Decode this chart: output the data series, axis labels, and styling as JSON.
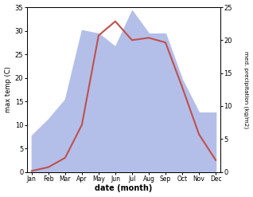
{
  "months": [
    "Jan",
    "Feb",
    "Mar",
    "Apr",
    "May",
    "Jun",
    "Jul",
    "Aug",
    "Sep",
    "Oct",
    "Nov",
    "Dec"
  ],
  "temp": [
    0.2,
    1.0,
    3.0,
    10.0,
    29.0,
    32.0,
    28.0,
    28.5,
    27.5,
    18.0,
    8.0,
    2.5
  ],
  "precip": [
    5.5,
    8.0,
    11.0,
    21.5,
    21.0,
    19.0,
    24.5,
    21.0,
    21.0,
    14.0,
    9.0,
    9.0
  ],
  "temp_color": "#c0504d",
  "precip_fill_color": "#b3bfe8",
  "ylim_temp": [
    0,
    35
  ],
  "ylim_precip": [
    0,
    25
  ],
  "xlabel": "date (month)",
  "ylabel_left": "max temp (C)",
  "ylabel_right": "med. precipitation (kg/m2)",
  "bg_color": "#ffffff",
  "yticks_temp": [
    0,
    5,
    10,
    15,
    20,
    25,
    30,
    35
  ],
  "yticks_precip": [
    0,
    5,
    10,
    15,
    20,
    25
  ]
}
